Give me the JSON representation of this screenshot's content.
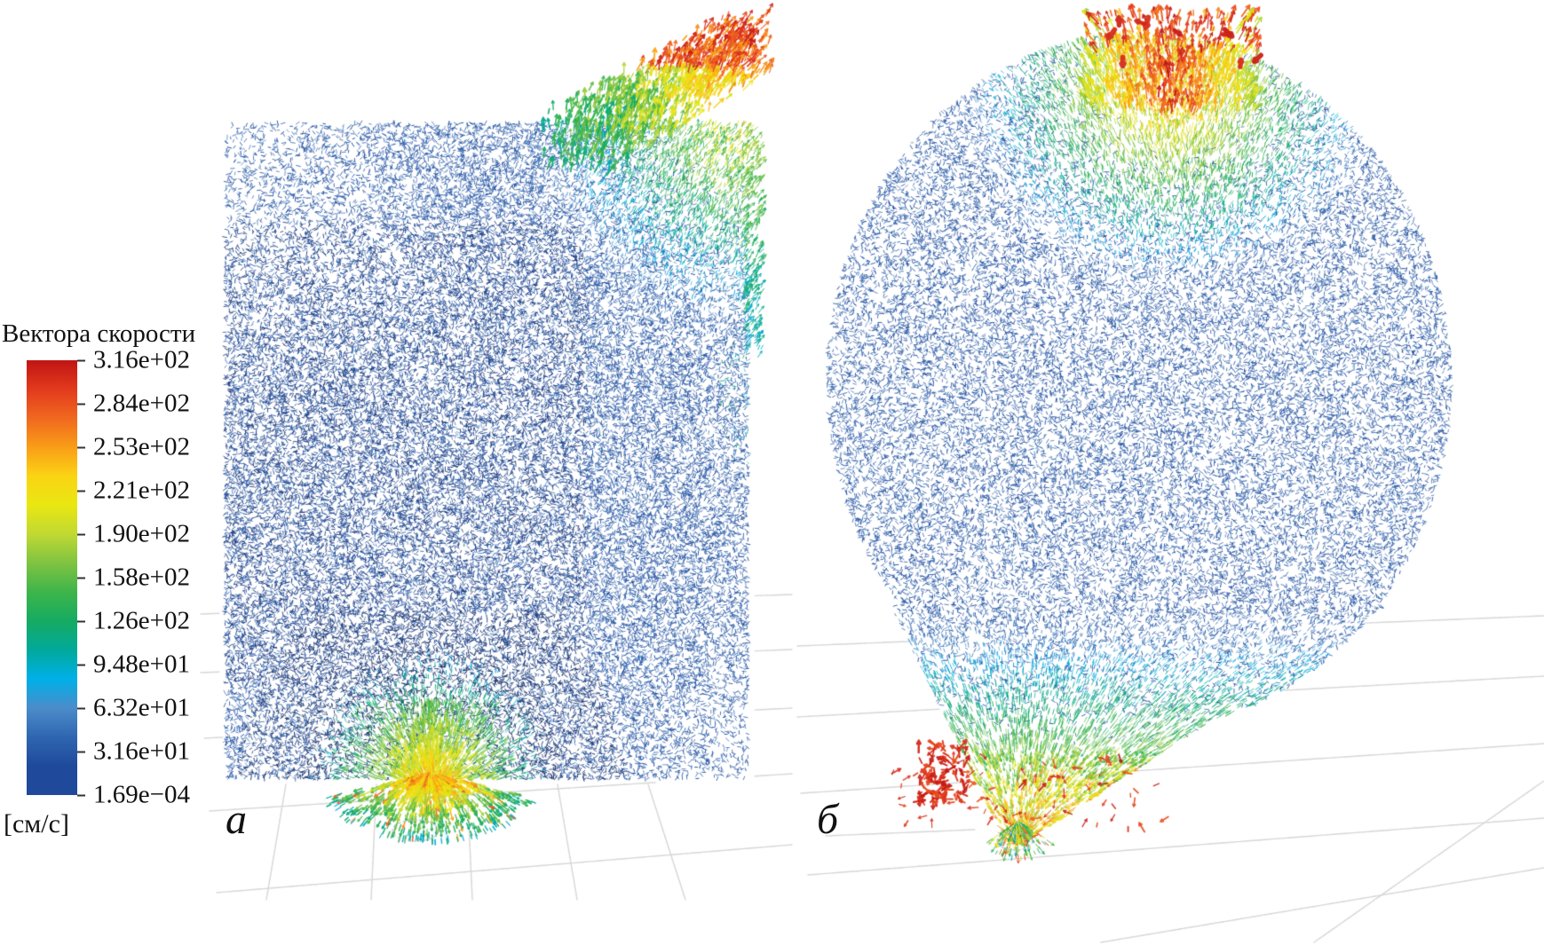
{
  "figure": {
    "background": "#ffffff"
  },
  "legend": {
    "title": "Вектора скорости",
    "unit": "[см/с]",
    "ticks": [
      "3.16e+02",
      "2.84e+02",
      "2.53e+02",
      "2.21e+02",
      "1.90e+02",
      "1.58e+02",
      "1.26e+02",
      "9.48e+01",
      "6.32e+01",
      "3.16e+01",
      "1.69e−04"
    ],
    "colormap_top_to_bottom": [
      "#c01414",
      "#e23a1d",
      "#f0681f",
      "#f99d17",
      "#fad414",
      "#e9e712",
      "#c0d932",
      "#7fc341",
      "#3db54a",
      "#16ab62",
      "#01a99b",
      "#00b0e8",
      "#4b8cca",
      "#2f66b0",
      "#1f4a9c",
      "#1f4a9c"
    ]
  },
  "panels": [
    {
      "id": "a",
      "label": "а"
    },
    {
      "id": "b",
      "label": "б"
    }
  ],
  "chart_data": {
    "type": "vector-field",
    "title": "Вектора скорости",
    "unit": "см/с",
    "colorbar": {
      "orientation": "vertical",
      "tick_labels": [
        "3.16e+02",
        "2.84e+02",
        "2.53e+02",
        "2.21e+02",
        "1.90e+02",
        "1.58e+02",
        "1.26e+02",
        "9.48e+01",
        "6.32e+01",
        "3.16e+01",
        "1.69e−04"
      ],
      "tick_values": [
        316,
        284,
        253,
        221,
        190,
        158,
        126,
        94.8,
        63.2,
        31.6,
        0.000169
      ],
      "range": [
        0.000169,
        316
      ],
      "high_color_meaning": "high speed (red)",
      "low_color_meaning": "low speed (blue)"
    },
    "panels": [
      {
        "label": "а",
        "shape": "cylindrical vessel, side view (rectangular silhouette)",
        "base_field": "dense low-speed blue vectors (~1.7e-4 … 3e+1 см/с)",
        "features": [
          "high-speed jet at top-right corner: green to yellow/red spikes up to ~3.16e+02 см/с",
          "cyan/green band along upper right edge",
          "green converging outflow cone above bottom outlet (~1.3e+2 … 1.9e+2 см/с)",
          "small fountain of green/yellow vectors exiting the bottom outlet",
          "light gray perspective floor grid behind and below the vessel"
        ]
      },
      {
        "label": "б",
        "shape": "egg / drop-shaped vessel tapering to bottom spout",
        "base_field": "dense low-speed blue vectors",
        "features": [
          "red/green high-speed jet at top apex",
          "cyan-to-green converging flow over lower third, converging to bottom spout",
          "red high-speed clusters near bottom-left of the funnel and at the spout",
          "light gray perspective floor grid behind and below the vessel"
        ]
      }
    ]
  }
}
